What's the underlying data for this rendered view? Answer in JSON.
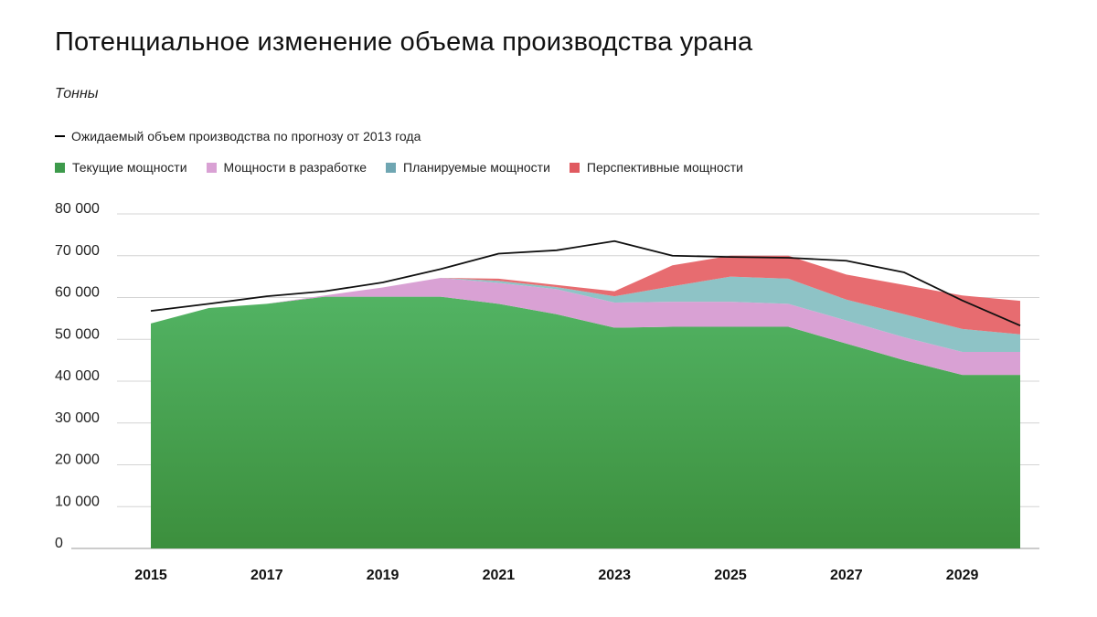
{
  "title": "Потенциальное изменение объема производства урана",
  "subtitle": "Тонны",
  "chart_data": {
    "type": "area",
    "title": "Потенциальное изменение объема производства урана",
    "ylabel": "Тонны",
    "ylim": [
      0,
      80000
    ],
    "y_ticks": [
      0,
      10000,
      20000,
      30000,
      40000,
      50000,
      60000,
      70000,
      80000
    ],
    "y_tick_labels": [
      "0",
      "10 000",
      "20 000",
      "30 000",
      "40 000",
      "50 000",
      "60 000",
      "70 000",
      "80 000"
    ],
    "x": [
      2015,
      2016,
      2017,
      2018,
      2019,
      2020,
      2021,
      2022,
      2023,
      2024,
      2025,
      2026,
      2027,
      2028,
      2029,
      2030
    ],
    "x_tick_labels": [
      "2015",
      "2017",
      "2019",
      "2021",
      "2023",
      "2025",
      "2027",
      "2029"
    ],
    "x_tick_values": [
      2015,
      2017,
      2019,
      2021,
      2023,
      2025,
      2027,
      2029
    ],
    "grid": true,
    "legend_position": "top-left",
    "series": [
      {
        "name": "Текущие мощности",
        "kind": "area",
        "color": "#4aab5a",
        "values": [
          53800,
          57500,
          58500,
          60200,
          60200,
          60200,
          58500,
          56000,
          52800,
          53000,
          53000,
          53000,
          49000,
          45000,
          41500,
          41500
        ]
      },
      {
        "name": "Мощности в разработке",
        "kind": "area",
        "color": "#d9a1d4",
        "values": [
          0,
          0,
          0,
          300,
          2200,
          4500,
          5000,
          6000,
          6000,
          6000,
          6000,
          5500,
          5500,
          5500,
          5500,
          5500
        ]
      },
      {
        "name": "Планируемые мощности",
        "kind": "area",
        "color": "#8ec3c6",
        "values": [
          0,
          0,
          0,
          0,
          0,
          0,
          500,
          500,
          1500,
          3700,
          6000,
          6000,
          5000,
          5500,
          5500,
          4200
        ]
      },
      {
        "name": "Перспективные мощности",
        "kind": "area",
        "color": "#e76c70",
        "values": [
          0,
          0,
          0,
          0,
          0,
          0,
          500,
          500,
          1200,
          5000,
          5000,
          5500,
          6000,
          7000,
          8000,
          8000
        ]
      },
      {
        "name": "Ожидаемый объем производства по прогнозу от 2013 года",
        "kind": "line",
        "color": "#111111",
        "values": [
          56800,
          58500,
          60300,
          61500,
          63600,
          66800,
          70500,
          71300,
          73500,
          70000,
          69700,
          69500,
          68800,
          66000,
          59300,
          53300
        ]
      }
    ]
  },
  "legend": {
    "line_label": "Ожидаемый объем производства по прогнозу от 2013 года",
    "area_items": [
      {
        "label": "Текущие мощности",
        "color": "#3d9a4b"
      },
      {
        "label": "Мощности в разработке",
        "color": "#d9a1d4"
      },
      {
        "label": "Планируемые мощности",
        "color": "#6fa6b2"
      },
      {
        "label": "Перспективные мощности",
        "color": "#e05a60"
      }
    ]
  }
}
